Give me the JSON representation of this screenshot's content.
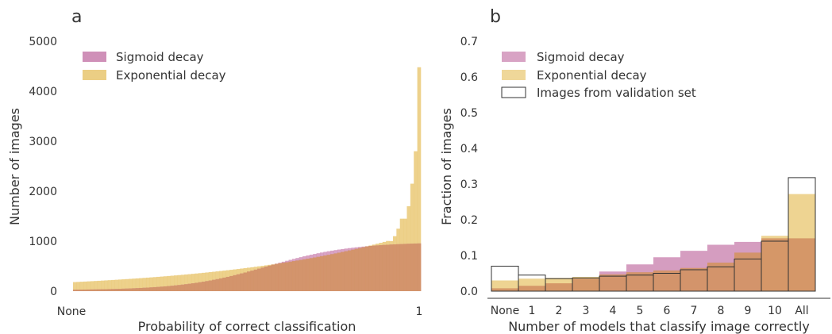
{
  "chart_data": [
    {
      "panel_label": "a",
      "type": "bar",
      "xlabel": "Probability of correct classification",
      "ylabel": "Number of images",
      "xlim": [
        0,
        1
      ],
      "ylim": [
        0,
        5000
      ],
      "yticks": [
        0,
        1000,
        2000,
        3000,
        4000,
        5000
      ],
      "xtick_labels": [
        "None",
        "1"
      ],
      "bins": 100,
      "legend_position": "top-left",
      "grid": false,
      "series": [
        {
          "name": "Sigmoid decay",
          "color": "#c77cab",
          "sigmoid": {
            "base": 20,
            "amp": 960,
            "mid": 0.56,
            "scale": 0.12
          }
        },
        {
          "name": "Exponential decay",
          "color": "#e8c66e",
          "exponential": {
            "base": 180,
            "rate": 1.9,
            "tail_start": 0.91,
            "tail": [
              1000,
              1100,
              1250,
              1450,
              1700,
              2150,
              2800,
              4480
            ]
          }
        }
      ]
    },
    {
      "panel_label": "b",
      "type": "bar",
      "xlabel": "Number of models that classify image correctly",
      "ylabel": "Fraction of images",
      "categories": [
        "None",
        "1",
        "2",
        "3",
        "4",
        "5",
        "6",
        "7",
        "8",
        "9",
        "10",
        "All"
      ],
      "ylim": [
        0,
        0.7
      ],
      "yticks": [
        0.0,
        0.1,
        0.2,
        0.3,
        0.4,
        0.5,
        0.6,
        0.7
      ],
      "legend_position": "top-left",
      "grid": false,
      "series": [
        {
          "name": "Sigmoid decay",
          "color": "#c77cab",
          "values": [
            0.008,
            0.015,
            0.022,
            0.035,
            0.055,
            0.075,
            0.095,
            0.113,
            0.13,
            0.138,
            0.148,
            0.148
          ]
        },
        {
          "name": "Exponential decay",
          "color": "#e8c66e",
          "values": [
            0.03,
            0.035,
            0.037,
            0.04,
            0.047,
            0.053,
            0.058,
            0.065,
            0.08,
            0.108,
            0.155,
            0.272
          ]
        },
        {
          "name": "Images from validation set",
          "color": "#333333",
          "style": "outline",
          "values": [
            0.07,
            0.045,
            0.035,
            0.037,
            0.042,
            0.045,
            0.05,
            0.06,
            0.068,
            0.09,
            0.14,
            0.318
          ]
        }
      ]
    }
  ]
}
